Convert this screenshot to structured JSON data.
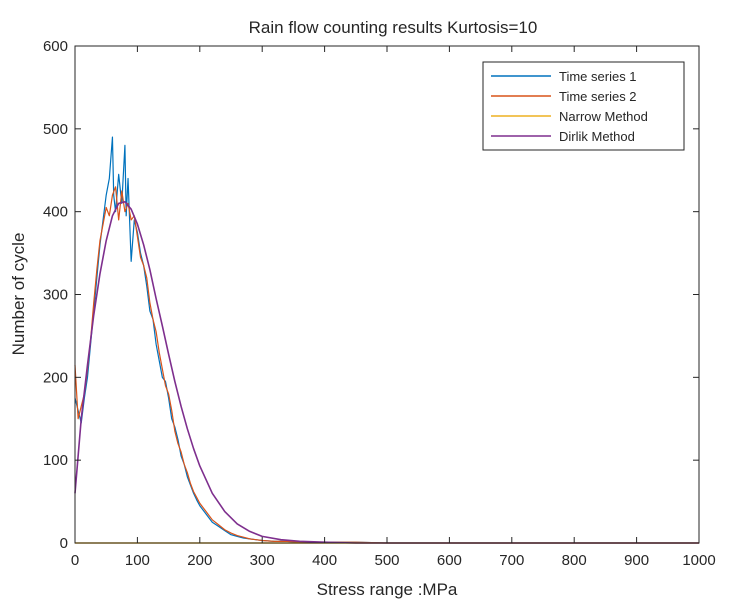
{
  "chart_data": {
    "type": "line",
    "title": "Rain flow counting results Kurtosis=10",
    "xlabel": "Stress range :MPa",
    "ylabel": "Number of cycle",
    "xlim": [
      0,
      1000
    ],
    "ylim": [
      0,
      600
    ],
    "xticks": [
      "0",
      "100",
      "200",
      "300",
      "400",
      "500",
      "600",
      "700",
      "800",
      "900",
      "1000"
    ],
    "yticks": [
      "0",
      "100",
      "200",
      "300",
      "400",
      "500",
      "600"
    ],
    "grid": false,
    "legend_position": "top-right",
    "series": [
      {
        "name": "Time series 1",
        "color": "#0072BD",
        "x": [
          0,
          5,
          10,
          15,
          20,
          25,
          30,
          35,
          40,
          45,
          50,
          55,
          60,
          62,
          65,
          70,
          75,
          80,
          82,
          85,
          90,
          95,
          100,
          105,
          110,
          115,
          120,
          125,
          130,
          135,
          140,
          145,
          150,
          155,
          160,
          165,
          170,
          175,
          180,
          185,
          190,
          195,
          200,
          210,
          220,
          230,
          240,
          250,
          260,
          270,
          280,
          290,
          300,
          320,
          340,
          360,
          380,
          400,
          450,
          500,
          550,
          600,
          700,
          800,
          900,
          1000
        ],
        "y": [
          175,
          160,
          145,
          175,
          200,
          240,
          280,
          320,
          360,
          390,
          420,
          440,
          490,
          420,
          400,
          445,
          410,
          480,
          395,
          440,
          340,
          390,
          375,
          350,
          335,
          310,
          280,
          270,
          240,
          220,
          200,
          195,
          175,
          150,
          140,
          125,
          105,
          95,
          80,
          70,
          60,
          52,
          45,
          35,
          25,
          20,
          15,
          10,
          8,
          6,
          5,
          4,
          3,
          2,
          2,
          1,
          1,
          1,
          1,
          0,
          0,
          0,
          0,
          0,
          0,
          0
        ]
      },
      {
        "name": "Time series 2",
        "color": "#D95319",
        "x": [
          0,
          5,
          10,
          15,
          20,
          25,
          30,
          35,
          40,
          45,
          50,
          55,
          60,
          65,
          70,
          75,
          80,
          85,
          90,
          95,
          100,
          105,
          110,
          115,
          120,
          125,
          130,
          135,
          140,
          145,
          150,
          155,
          160,
          165,
          170,
          175,
          180,
          185,
          190,
          195,
          200,
          210,
          220,
          230,
          240,
          250,
          260,
          270,
          280,
          290,
          300,
          320,
          340,
          360,
          380,
          400,
          450,
          500,
          550,
          600,
          700,
          800,
          900,
          1000
        ],
        "y": [
          215,
          150,
          165,
          180,
          210,
          245,
          290,
          330,
          365,
          385,
          405,
          395,
          420,
          430,
          390,
          425,
          400,
          410,
          390,
          395,
          370,
          345,
          335,
          320,
          290,
          270,
          255,
          230,
          210,
          190,
          180,
          160,
          135,
          120,
          110,
          95,
          85,
          72,
          62,
          55,
          48,
          38,
          28,
          22,
          16,
          12,
          9,
          7,
          5,
          4,
          3,
          2,
          2,
          1,
          1,
          1,
          1,
          0,
          0,
          0,
          0,
          0,
          0,
          0
        ]
      },
      {
        "name": "Narrow Method",
        "color": "#EDB120",
        "x": [
          0,
          100,
          200,
          300,
          400,
          500,
          600,
          700,
          800,
          900,
          1000
        ],
        "y": [
          0,
          0,
          0,
          0,
          0,
          0,
          0,
          0,
          0,
          0,
          0
        ]
      },
      {
        "name": "Dirlik Method",
        "color": "#7E2F8E",
        "x": [
          0,
          10,
          20,
          30,
          40,
          50,
          60,
          70,
          80,
          90,
          100,
          110,
          120,
          130,
          140,
          150,
          160,
          170,
          180,
          190,
          200,
          220,
          240,
          260,
          280,
          300,
          330,
          360,
          400,
          450,
          500,
          600,
          700,
          800,
          900,
          1000
        ],
        "y": [
          60,
          150,
          215,
          275,
          325,
          365,
          395,
          410,
          412,
          403,
          385,
          360,
          330,
          295,
          262,
          228,
          195,
          165,
          138,
          114,
          93,
          60,
          38,
          23,
          14,
          8,
          4,
          2,
          1,
          0,
          0,
          0,
          0,
          0,
          0,
          0
        ]
      }
    ]
  }
}
